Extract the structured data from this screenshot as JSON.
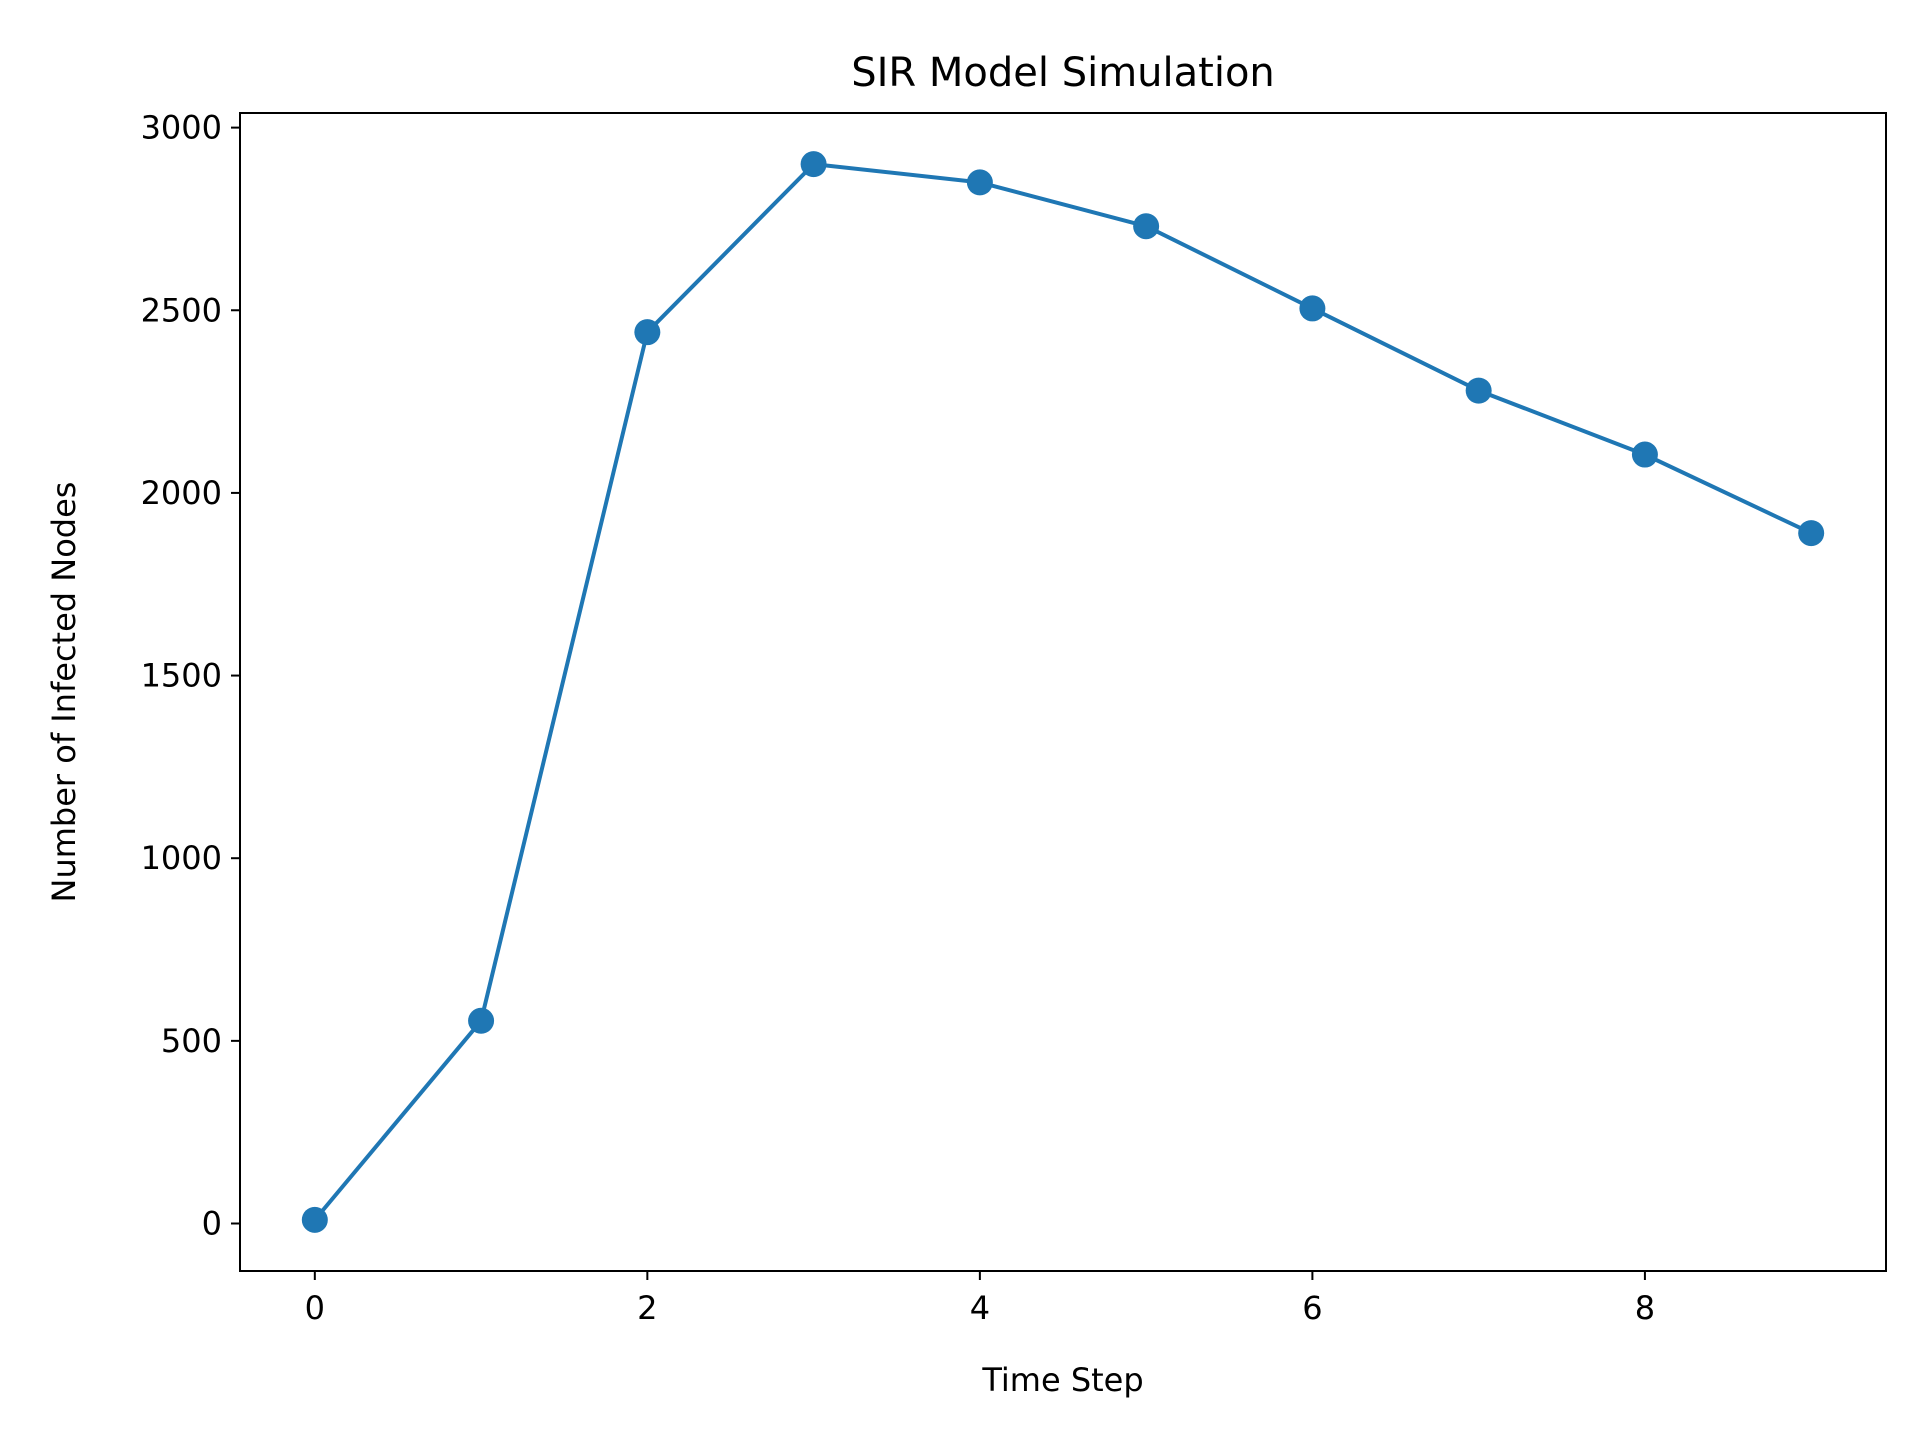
{
  "chart_data": {
    "type": "line",
    "title": "SIR Model Simulation",
    "xlabel": "Time Step",
    "ylabel": "Number of Infected Nodes",
    "x": [
      0,
      1,
      2,
      3,
      4,
      5,
      6,
      7,
      8,
      9
    ],
    "series": [
      {
        "values": [
          10,
          555,
          2440,
          2900,
          2850,
          2730,
          2505,
          2280,
          2105,
          1890
        ],
        "color": "#1f77b4",
        "marker": "circle"
      }
    ],
    "xlim": [
      -0.45,
      9.45
    ],
    "ylim": [
      -130,
      3040
    ],
    "xticks": [
      0,
      2,
      4,
      6,
      8
    ],
    "yticks": [
      0,
      500,
      1000,
      1500,
      2000,
      2500,
      3000
    ],
    "grid": false,
    "legend": "none"
  }
}
